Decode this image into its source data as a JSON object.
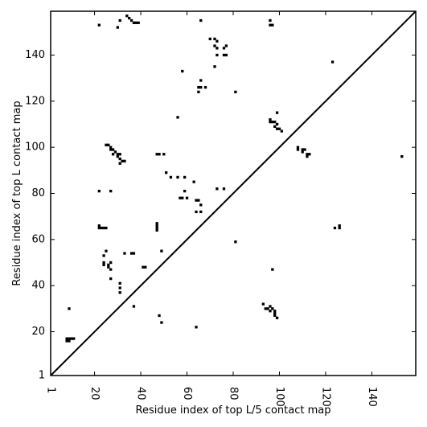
{
  "chart_data": {
    "type": "scatter",
    "xlabel": "Residue index of top L/5 contact map",
    "ylabel": "Residue index of top L contact map",
    "xlim": [
      1,
      159
    ],
    "ylim": [
      1,
      159
    ],
    "xticks": [
      1,
      20,
      40,
      60,
      80,
      100,
      120,
      140
    ],
    "yticks": [
      1,
      20,
      40,
      60,
      80,
      100,
      120,
      140
    ],
    "grid": false,
    "marker": "square",
    "color": "#000000",
    "diagonal": true,
    "series": [
      {
        "points": [
          [
            22,
            153
          ],
          [
            30,
            152
          ],
          [
            31,
            155
          ],
          [
            34,
            157
          ],
          [
            35,
            156
          ],
          [
            36,
            155
          ],
          [
            37,
            154
          ],
          [
            38,
            154
          ],
          [
            39,
            154
          ],
          [
            66,
            155
          ],
          [
            70,
            147
          ],
          [
            72,
            147
          ],
          [
            73,
            146
          ],
          [
            72,
            144
          ],
          [
            73,
            143
          ],
          [
            77,
            144
          ],
          [
            76,
            143
          ],
          [
            73,
            140
          ],
          [
            76,
            140
          ],
          [
            77,
            140
          ],
          [
            72,
            135
          ],
          [
            58,
            133
          ],
          [
            66,
            129
          ],
          [
            65,
            126
          ],
          [
            65,
            124
          ],
          [
            66,
            126
          ],
          [
            68,
            126
          ],
          [
            81,
            124
          ],
          [
            56,
            113
          ],
          [
            96,
            155
          ],
          [
            96,
            153
          ],
          [
            97,
            153
          ],
          [
            123,
            137
          ],
          [
            96,
            112
          ],
          [
            96,
            111
          ],
          [
            97,
            111
          ],
          [
            98,
            111
          ],
          [
            99,
            110
          ],
          [
            98,
            109
          ],
          [
            99,
            108
          ],
          [
            100,
            108
          ],
          [
            101,
            107
          ],
          [
            99,
            115
          ],
          [
            108,
            100
          ],
          [
            108,
            99
          ],
          [
            110,
            99
          ],
          [
            110,
            98
          ],
          [
            111,
            99
          ],
          [
            112,
            97
          ],
          [
            112,
            96
          ],
          [
            113,
            97
          ],
          [
            153,
            96
          ],
          [
            25,
            101
          ],
          [
            26,
            101
          ],
          [
            27,
            100
          ],
          [
            27,
            99
          ],
          [
            28,
            99
          ],
          [
            29,
            98
          ],
          [
            30,
            97
          ],
          [
            31,
            97
          ],
          [
            30,
            96
          ],
          [
            31,
            95
          ],
          [
            32,
            94
          ],
          [
            33,
            94
          ],
          [
            28,
            97
          ],
          [
            31,
            93
          ],
          [
            47,
            97
          ],
          [
            48,
            97
          ],
          [
            50,
            97
          ],
          [
            51,
            89
          ],
          [
            53,
            87
          ],
          [
            56,
            87
          ],
          [
            59,
            87
          ],
          [
            63,
            85
          ],
          [
            22,
            81
          ],
          [
            27,
            81
          ],
          [
            59,
            81
          ],
          [
            57,
            78
          ],
          [
            58,
            78
          ],
          [
            60,
            78
          ],
          [
            64,
            77
          ],
          [
            65,
            77
          ],
          [
            66,
            75
          ],
          [
            64,
            72
          ],
          [
            66,
            72
          ],
          [
            73,
            82
          ],
          [
            76,
            82
          ],
          [
            22,
            66
          ],
          [
            23,
            65
          ],
          [
            24,
            65
          ],
          [
            25,
            65
          ],
          [
            22,
            65
          ],
          [
            47,
            67
          ],
          [
            47,
            66
          ],
          [
            47,
            65
          ],
          [
            47,
            64
          ],
          [
            124,
            65
          ],
          [
            126,
            66
          ],
          [
            126,
            65
          ],
          [
            81,
            59
          ],
          [
            25,
            55
          ],
          [
            24,
            53
          ],
          [
            33,
            54
          ],
          [
            36,
            54
          ],
          [
            37,
            54
          ],
          [
            49,
            55
          ],
          [
            24,
            50
          ],
          [
            24,
            49
          ],
          [
            27,
            50
          ],
          [
            26,
            49
          ],
          [
            26,
            48
          ],
          [
            27,
            47
          ],
          [
            41,
            48
          ],
          [
            42,
            48
          ],
          [
            27,
            43
          ],
          [
            31,
            41
          ],
          [
            31,
            39
          ],
          [
            31,
            37
          ],
          [
            37,
            31
          ],
          [
            97,
            47
          ],
          [
            9,
            30
          ],
          [
            48,
            27
          ],
          [
            49,
            24
          ],
          [
            64,
            22
          ],
          [
            8,
            17
          ],
          [
            9,
            17
          ],
          [
            10,
            17
          ],
          [
            11,
            17
          ],
          [
            9,
            16
          ],
          [
            8,
            16
          ],
          [
            93,
            32
          ],
          [
            94,
            30
          ],
          [
            95,
            30
          ],
          [
            96,
            31
          ],
          [
            97,
            30
          ],
          [
            96,
            29
          ],
          [
            98,
            29
          ],
          [
            98,
            28
          ],
          [
            98,
            27
          ],
          [
            99,
            26
          ]
        ]
      }
    ]
  }
}
